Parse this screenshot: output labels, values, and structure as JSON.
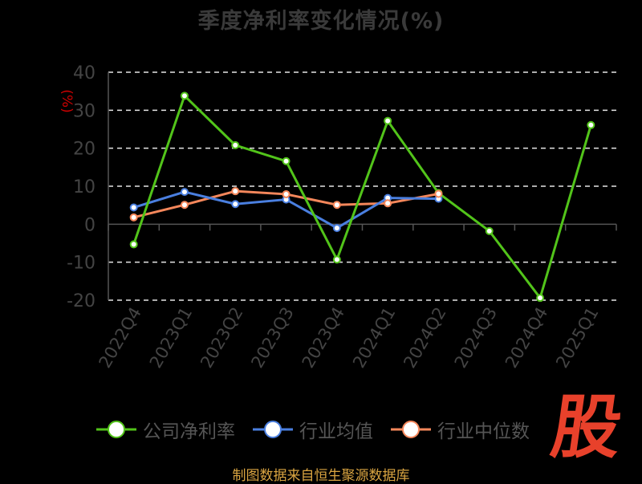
{
  "chart_data": {
    "type": "line",
    "title": "季度净利率变化情况(%)",
    "ylabel": "(%)",
    "categories": [
      "2022Q4",
      "2023Q1",
      "2023Q2",
      "2023Q3",
      "2023Q4",
      "2024Q1",
      "2024Q2",
      "2024Q3",
      "2024Q4",
      "2025Q1"
    ],
    "ylim": [
      -20,
      40
    ],
    "yticks": [
      40,
      30,
      20,
      10,
      0,
      -10,
      -20
    ],
    "grid": true,
    "legend_position": "bottom",
    "series": [
      {
        "name": "公司净利率",
        "color": "#52c41a",
        "values": [
          -5.3,
          33.8,
          20.8,
          16.6,
          -9.3,
          27.2,
          8.2,
          -1.8,
          -19.4,
          26.1
        ]
      },
      {
        "name": "行业均值",
        "color": "#4a7fe0",
        "values": [
          4.4,
          8.5,
          5.3,
          6.5,
          -1.0,
          6.9,
          6.7,
          null,
          null,
          null
        ]
      },
      {
        "name": "行业中位数",
        "color": "#f5875b",
        "values": [
          1.8,
          5.1,
          8.7,
          7.9,
          5.1,
          5.5,
          8.0,
          null,
          null,
          null
        ]
      }
    ]
  },
  "footer": {
    "source": "制图数据来自恒生聚源数据库"
  },
  "logo": {
    "glyph": "股"
  }
}
